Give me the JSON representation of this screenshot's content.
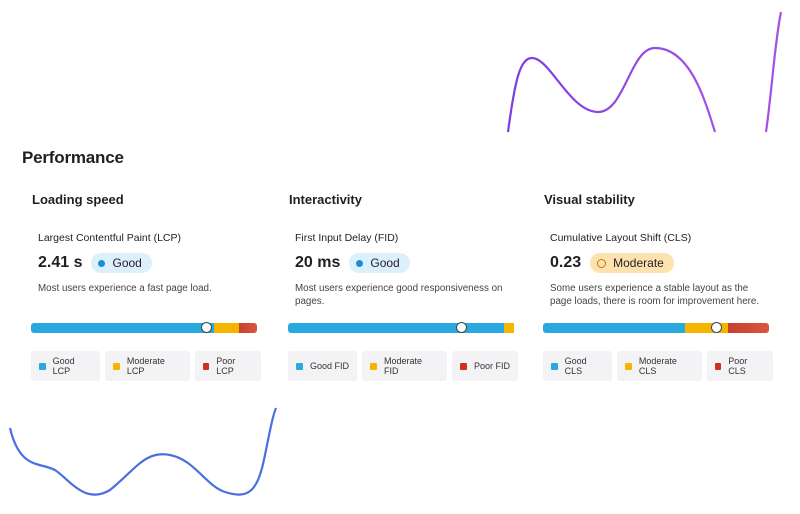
{
  "section_title": "Performance",
  "cards": [
    {
      "heading": "Loading speed",
      "metric": "Largest Contentful Paint (LCP)",
      "value": "2.41 s",
      "status": "Good",
      "description": "Most users experience a fast page load.",
      "distribution": {
        "good": 81,
        "moderate": 11,
        "poor": 8
      },
      "marker": 78,
      "legend": [
        "Good LCP",
        "Moderate LCP",
        "Poor LCP"
      ]
    },
    {
      "heading": "Interactivity",
      "metric": "First Input Delay (FID)",
      "value": "20 ms",
      "status": "Good",
      "description": "Most users experience good responsiveness on pages.",
      "distribution": {
        "good": 95.5,
        "moderate": 4.5,
        "poor": 0
      },
      "marker": 77,
      "legend": [
        "Good FID",
        "Moderate FID",
        "Poor FID"
      ]
    },
    {
      "heading": "Visual stability",
      "metric": "Cumulative Layout Shift (CLS)",
      "value": "0.23",
      "status": "Moderate",
      "description": "Some users experience a stable layout as the page loads, there is room for improvement here.",
      "distribution": {
        "good": 63,
        "moderate": 19,
        "poor": 18
      },
      "marker": 77,
      "legend": [
        "Good CLS",
        "Moderate CLS",
        "Poor CLS"
      ]
    }
  ]
}
